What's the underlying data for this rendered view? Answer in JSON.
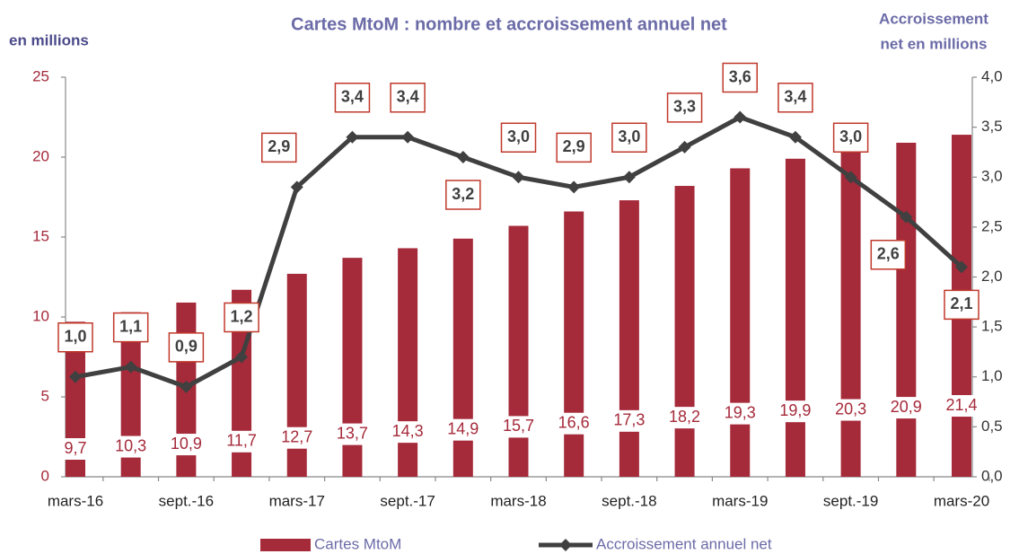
{
  "chart_data": {
    "type": "bar_line",
    "title": "Cartes MtoM : nombre et accroissement annuel net",
    "y_label": "en millions",
    "y2_label": [
      "Accroissement",
      "net en millions"
    ],
    "categories": [
      "mars-16",
      null,
      "sept.-16",
      null,
      "mars-17",
      null,
      "sept.-17",
      null,
      "mars-18",
      null,
      "sept.-18",
      null,
      "mars-19",
      null,
      "sept.-19",
      null,
      "mars-20"
    ],
    "series": [
      {
        "name": "Cartes MtoM",
        "type": "bar",
        "color": "#a52a3a",
        "values": [
          9.7,
          10.3,
          10.9,
          11.7,
          12.7,
          13.7,
          14.3,
          14.9,
          15.7,
          16.6,
          17.3,
          18.2,
          19.3,
          19.9,
          20.3,
          20.9,
          21.4
        ],
        "value_labels": [
          "9,7",
          "10,3",
          "10,9",
          "11,7",
          "12,7",
          "13,7",
          "14,3",
          "14,9",
          "15,7",
          "16,6",
          "17,3",
          "18,2",
          "19,3",
          "19,9",
          "20,3",
          "20,9",
          "21,4"
        ]
      },
      {
        "name": "Accroissement annuel net",
        "type": "line",
        "axis": "y2",
        "color": "#404040",
        "values": [
          1.0,
          1.1,
          0.9,
          1.2,
          2.9,
          3.4,
          3.4,
          3.2,
          3.0,
          2.9,
          3.0,
          3.3,
          3.6,
          3.4,
          3.0,
          2.6,
          2.1
        ],
        "value_labels": [
          "1,0",
          "1,1",
          "0,9",
          "1,2",
          "2,9",
          "3,4",
          "3,4",
          "3,2",
          "3,0",
          "2,9",
          "3,0",
          "3,3",
          "3,6",
          "3,4",
          "3,0",
          "2,6",
          "2,1"
        ]
      }
    ],
    "ylim": [
      0,
      25
    ],
    "yticks": [
      0,
      5,
      10,
      15,
      20,
      25
    ],
    "y2lim": [
      0,
      4
    ],
    "y2ticks": [
      {
        "value": 0,
        "label": "0,0"
      },
      {
        "value": 0.5,
        "label": "0,5"
      },
      {
        "value": 1,
        "label": "1,0"
      },
      {
        "value": 1.5,
        "label": "1,5"
      },
      {
        "value": 2,
        "label": "2,0"
      },
      {
        "value": 2.5,
        "label": "2,5"
      },
      {
        "value": 3,
        "label": "3,0"
      },
      {
        "value": 3.5,
        "label": "3,5"
      },
      {
        "value": 4,
        "label": "4,0"
      }
    ],
    "legend": "bottom"
  }
}
